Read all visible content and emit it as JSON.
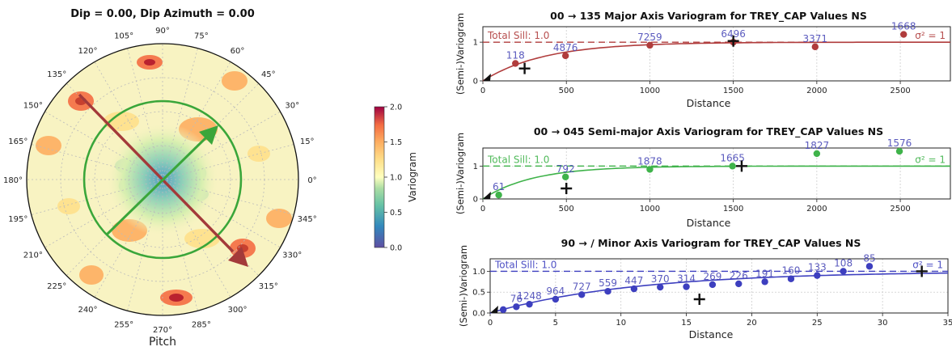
{
  "polar": {
    "title": "Dip = 0.00, Dip Azimuth = 0.00",
    "bottom_label": "Pitch",
    "angle_labels": [
      "0°",
      "15°",
      "30°",
      "45°",
      "60°",
      "75°",
      "90°",
      "105°",
      "120°",
      "135°",
      "150°",
      "165°",
      "180°",
      "195°",
      "210°",
      "225°",
      "240°",
      "255°",
      "270°",
      "285°",
      "300°",
      "315°",
      "330°",
      "345°"
    ],
    "colorbar": {
      "label": "Variogram",
      "ticks": [
        "0.0",
        "0.5",
        "1.0",
        "1.5",
        "2.0"
      ],
      "min": 0,
      "max": 2
    },
    "major_axis_color": "#a33a3a",
    "semi_major_axis_color": "#3aa63a"
  },
  "chart_data": [
    {
      "type": "scatter",
      "title": "00 → 135 Major Axis Variogram for TREY_CAP Values NS",
      "xlabel": "Distance",
      "ylabel": "(Semi-)Variogram",
      "xlim": [
        0,
        2800
      ],
      "ylim": [
        0,
        1.4
      ],
      "xticks": [
        "0",
        "500",
        "1000",
        "1500",
        "2000",
        "2500"
      ],
      "yticks": [
        "0",
        "1"
      ],
      "sill_label": "Total Sill: 1.0",
      "sigma_label": "σ² = 1",
      "color": "#b03c3c",
      "points": [
        {
          "x": 195,
          "y": 0.45,
          "label": "118"
        },
        {
          "x": 495,
          "y": 0.65,
          "label": "4876"
        },
        {
          "x": 1000,
          "y": 0.92,
          "label": "7259"
        },
        {
          "x": 1500,
          "y": 1.0,
          "label": "6496"
        },
        {
          "x": 1990,
          "y": 0.88,
          "label": "3371"
        },
        {
          "x": 2520,
          "y": 1.2,
          "label": "1668"
        }
      ],
      "range_markers": [
        {
          "x": 250,
          "y": 0.32
        },
        {
          "x": 1500,
          "y": 1.03
        }
      ],
      "model_range": 1100
    },
    {
      "type": "scatter",
      "title": "00 → 045 Semi-major Axis Variogram for TREY_CAP Values NS",
      "xlabel": "Distance",
      "ylabel": "(Semi-)Variogram",
      "xlim": [
        0,
        2800
      ],
      "ylim": [
        0,
        1.55
      ],
      "xticks": [
        "0",
        "500",
        "1000",
        "1500",
        "2000",
        "2500"
      ],
      "yticks": [
        "0",
        "1"
      ],
      "sill_label": "Total Sill: 1.0",
      "sigma_label": "σ² = 1",
      "color": "#3fb34a",
      "points": [
        {
          "x": 95,
          "y": 0.12,
          "label": "61"
        },
        {
          "x": 495,
          "y": 0.67,
          "label": "792"
        },
        {
          "x": 1000,
          "y": 0.9,
          "label": "1878"
        },
        {
          "x": 1495,
          "y": 1.0,
          "label": "1665"
        },
        {
          "x": 2000,
          "y": 1.38,
          "label": "1827"
        },
        {
          "x": 2495,
          "y": 1.45,
          "label": "1576"
        }
      ],
      "range_markers": [
        {
          "x": 500,
          "y": 0.32
        },
        {
          "x": 1550,
          "y": 1.0
        }
      ],
      "model_range": 900
    },
    {
      "type": "scatter",
      "title": "90 → / Minor Axis Variogram for TREY_CAP Values NS",
      "xlabel": "Distance",
      "ylabel": "(Semi-)Variogram",
      "xlim": [
        0,
        35
      ],
      "ylim": [
        0,
        1.3
      ],
      "xticks": [
        "0",
        "5",
        "10",
        "15",
        "20",
        "25",
        "30",
        "35"
      ],
      "yticks": [
        "0.0",
        "0.5",
        "1.0"
      ],
      "sill_label": "Total Sill: 1.0",
      "sigma_label": "σ² = 1",
      "color": "#3d3fbf",
      "points": [
        {
          "x": 1,
          "y": 0.08,
          "label": ""
        },
        {
          "x": 2,
          "y": 0.15,
          "label": "76"
        },
        {
          "x": 3,
          "y": 0.21,
          "label": "1248"
        },
        {
          "x": 5,
          "y": 0.33,
          "label": "964"
        },
        {
          "x": 7,
          "y": 0.44,
          "label": "727"
        },
        {
          "x": 9,
          "y": 0.52,
          "label": "559"
        },
        {
          "x": 11,
          "y": 0.58,
          "label": "447"
        },
        {
          "x": 13,
          "y": 0.62,
          "label": "370"
        },
        {
          "x": 15,
          "y": 0.63,
          "label": "314"
        },
        {
          "x": 17,
          "y": 0.68,
          "label": "269"
        },
        {
          "x": 19,
          "y": 0.7,
          "label": "226"
        },
        {
          "x": 21,
          "y": 0.75,
          "label": "191"
        },
        {
          "x": 23,
          "y": 0.82,
          "label": "160"
        },
        {
          "x": 25,
          "y": 0.9,
          "label": "133"
        },
        {
          "x": 27,
          "y": 1.0,
          "label": "108"
        },
        {
          "x": 29,
          "y": 1.12,
          "label": "85"
        }
      ],
      "range_markers": [
        {
          "x": 16,
          "y": 0.33
        },
        {
          "x": 33,
          "y": 1.0
        }
      ],
      "model_range": 33
    }
  ]
}
